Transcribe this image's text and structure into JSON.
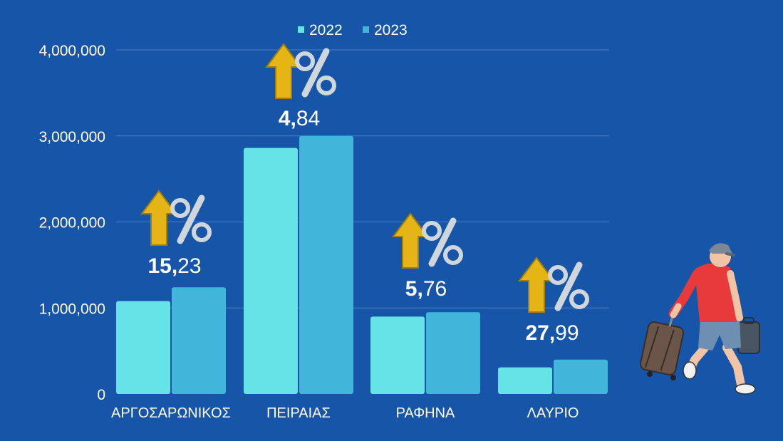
{
  "colors": {
    "background": "#1655a8",
    "series_2022": "#66e3e6",
    "series_2023": "#41b6da",
    "gridline": "#4d7fc4",
    "arrow_gold": "#e4b514",
    "percent_silver": "#cfd6dc"
  },
  "icons": {
    "growth": "up-arrow-percent-icon",
    "traveler": "traveler-with-luggage-icon"
  },
  "chart_data": {
    "type": "bar",
    "categories": [
      "ΑΡΓΟΣΑΡΩΝΙΚΟΣ",
      "ΠΕΙΡΑΙΑΣ",
      "ΡΑΦΗΝΑ",
      "ΛΑΥΡΙΟ"
    ],
    "series": [
      {
        "name": "2022",
        "values": [
          1080000,
          2860000,
          900000,
          310000
        ]
      },
      {
        "name": "2023",
        "values": [
          1240000,
          3000000,
          950000,
          400000
        ]
      }
    ],
    "ylim": [
      0,
      4000000
    ],
    "yticks": [
      0,
      1000000,
      2000000,
      3000000,
      4000000
    ],
    "ytick_labels": [
      "0",
      "1,000,000",
      "2,000,000",
      "3,000,000",
      "4,000,000"
    ],
    "grid": true,
    "legend_position": "top-center",
    "annotations": [
      {
        "category": "ΑΡΓΟΣΑΡΩΝΙΚΟΣ",
        "int_part": "15,",
        "dec_part": "23"
      },
      {
        "category": "ΠΕΙΡΑΙΑΣ",
        "int_part": "4,",
        "dec_part": "84"
      },
      {
        "category": "ΡΑΦΗΝΑ",
        "int_part": "5,",
        "dec_part": "76"
      },
      {
        "category": "ΛΑΥΡΙΟ",
        "int_part": "27,",
        "dec_part": "99"
      }
    ]
  }
}
